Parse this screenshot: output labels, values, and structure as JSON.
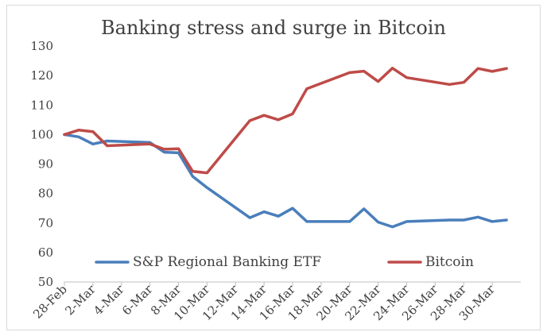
{
  "chart_data": {
    "type": "line",
    "title": "Banking stress and surge in Bitcoin",
    "xlabel": "",
    "ylabel": "",
    "ylim": [
      50,
      130
    ],
    "yticks": [
      50,
      60,
      70,
      80,
      90,
      100,
      110,
      120,
      130
    ],
    "x_tick_labels": [
      "28-Feb",
      "2-Mar",
      "4-Mar",
      "6-Mar",
      "8-Mar",
      "10-Mar",
      "12-Mar",
      "14-Mar",
      "16-Mar",
      "18-Mar",
      "20-Mar",
      "22-Mar",
      "24-Mar",
      "26-Mar",
      "28-Mar",
      "30-Mar"
    ],
    "x": [
      "28-Feb",
      "1-Mar",
      "2-Mar",
      "3-Mar",
      "6-Mar",
      "7-Mar",
      "8-Mar",
      "9-Mar",
      "10-Mar",
      "13-Mar",
      "14-Mar",
      "15-Mar",
      "16-Mar",
      "17-Mar",
      "20-Mar",
      "21-Mar",
      "22-Mar",
      "23-Mar",
      "24-Mar",
      "27-Mar",
      "28-Mar",
      "29-Mar",
      "30-Mar",
      "31-Mar"
    ],
    "x_index": [
      0,
      1,
      2,
      3,
      6,
      7,
      8,
      9,
      10,
      13,
      14,
      15,
      16,
      17,
      20,
      21,
      22,
      23,
      24,
      27,
      28,
      29,
      30,
      31
    ],
    "x_max_index": 32,
    "grid": false,
    "legend": "bottom",
    "series": [
      {
        "name": "S&P Regional Banking ETF",
        "color": "#4a7ebb",
        "values": [
          100,
          99.2,
          96.8,
          97.8,
          97.3,
          94,
          93.8,
          85.8,
          82,
          71.8,
          73.8,
          72.3,
          75,
          70.5,
          70.5,
          74.8,
          70.3,
          68.7,
          70.5,
          71,
          71,
          72,
          70.5,
          71
        ]
      },
      {
        "name": "Bitcoin",
        "color": "#be4b48",
        "values": [
          100,
          101.5,
          101,
          96.2,
          96.8,
          95,
          95.2,
          87.5,
          87,
          104.7,
          106.5,
          105,
          107,
          115.5,
          121,
          121.5,
          118,
          122.5,
          119.3,
          117,
          117.7,
          122.4,
          121.4,
          122.4
        ]
      }
    ]
  }
}
